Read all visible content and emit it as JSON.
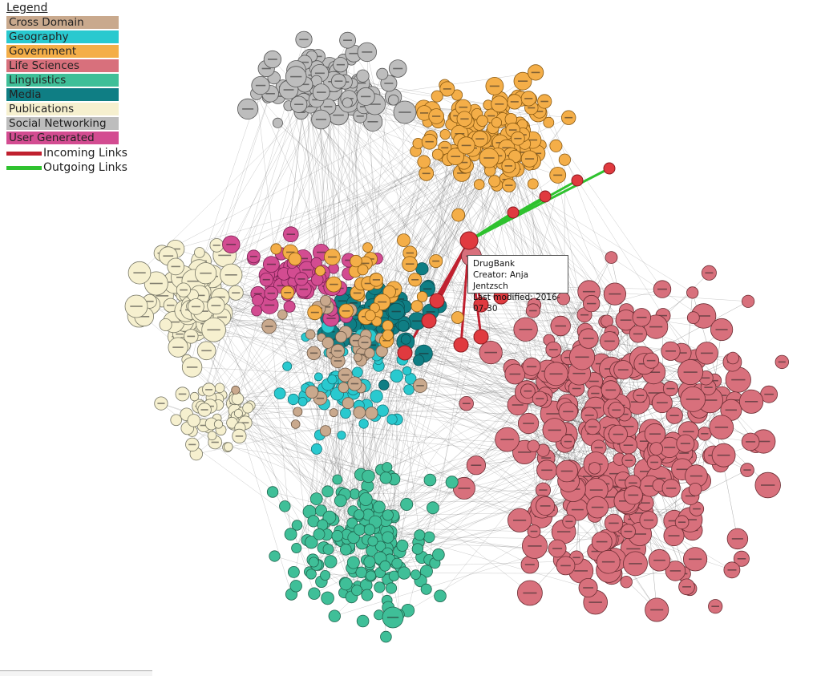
{
  "legend": {
    "title": "Legend",
    "categories": [
      {
        "label": "Cross Domain",
        "color": "#c9a98d"
      },
      {
        "label": "Geography",
        "color": "#29c9cf"
      },
      {
        "label": "Government",
        "color": "#f4ae48"
      },
      {
        "label": "Life Sciences",
        "color": "#d8707c"
      },
      {
        "label": "Linguistics",
        "color": "#3fbf98"
      },
      {
        "label": "Media",
        "color": "#0f7e84"
      },
      {
        "label": "Publications",
        "color": "#f6f0cf"
      },
      {
        "label": "Social Networking",
        "color": "#bdbdbd"
      },
      {
        "label": "User Generated",
        "color": "#d34c91"
      }
    ],
    "links": [
      {
        "label": "Incoming Links",
        "color": "#c0202f"
      },
      {
        "label": "Outgoing Links",
        "color": "#2fc22f"
      }
    ]
  },
  "tooltip": {
    "name": "DrugBank",
    "creator": "Creator: Anja Jentzsch",
    "modified": "Last modified: 2016-07-30"
  }
}
